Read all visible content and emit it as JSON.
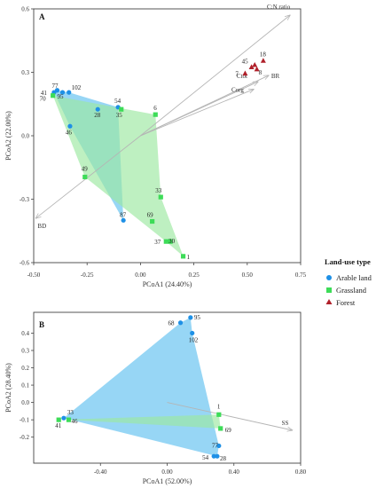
{
  "colors": {
    "arable": "#1e90e6",
    "grassland": "#3ddc58",
    "forest": "#b0202a",
    "arable_hull": "#5fc0ef",
    "grassland_hull": "#9be89f",
    "vector": "#b5b5b5",
    "frame": "#444444"
  },
  "legend": {
    "title": "Land-use type",
    "items": [
      "Arable land",
      "Grassland",
      "Forest"
    ]
  },
  "chart_data": [
    {
      "type": "scatter",
      "panel": "A",
      "xlabel": "PCoA1 (24.40%)",
      "ylabel": "PCoA2 (22.00%)",
      "xlim": [
        -0.5,
        0.75
      ],
      "ylim": [
        -0.6,
        0.6
      ],
      "xticks": [
        -0.5,
        -0.25,
        0,
        0.25,
        0.5,
        0.75
      ],
      "xtick_labels": [
        "-0.50",
        "-0.25",
        "0.00",
        "0.25",
        "0.50",
        "0.75"
      ],
      "yticks": [
        -0.6,
        -0.3,
        0,
        0.3,
        0.6
      ],
      "ytick_labels": [
        "-0.6",
        "-0.3",
        "0.0",
        "0.3",
        "0.6"
      ],
      "series": [
        {
          "name": "Arable land",
          "points": [
            {
              "label": "77",
              "x": -0.39,
              "y": 0.215
            },
            {
              "label": "41",
              "x": -0.405,
              "y": 0.205
            },
            {
              "label": "95",
              "x": -0.365,
              "y": 0.205
            },
            {
              "label": "102",
              "x": -0.335,
              "y": 0.205
            },
            {
              "label": "54",
              "x": -0.105,
              "y": 0.135
            },
            {
              "label": "28",
              "x": -0.2,
              "y": 0.125
            },
            {
              "label": "46",
              "x": -0.33,
              "y": 0.045
            },
            {
              "label": "87",
              "x": -0.08,
              "y": -0.4
            }
          ]
        },
        {
          "name": "Grassland",
          "points": [
            {
              "label": "70",
              "x": -0.41,
              "y": 0.19
            },
            {
              "label": "35",
              "x": -0.09,
              "y": 0.125
            },
            {
              "label": "6",
              "x": 0.07,
              "y": 0.1
            },
            {
              "label": "49",
              "x": -0.26,
              "y": -0.195
            },
            {
              "label": "33",
              "x": 0.095,
              "y": -0.29
            },
            {
              "label": "69",
              "x": 0.055,
              "y": -0.405
            },
            {
              "label": "37",
              "x": 0.12,
              "y": -0.5
            },
            {
              "label": "30",
              "x": 0.14,
              "y": -0.5
            },
            {
              "label": "1",
              "x": 0.2,
              "y": -0.57
            }
          ]
        },
        {
          "name": "Forest",
          "points": [
            {
              "label": "7",
              "x": 0.49,
              "y": 0.295
            },
            {
              "label": "45",
              "x": 0.52,
              "y": 0.325
            },
            {
              "label": "8",
              "x": 0.545,
              "y": 0.315
            },
            {
              "label": "",
              "x": 0.535,
              "y": 0.335
            },
            {
              "label": "18",
              "x": 0.575,
              "y": 0.355
            }
          ]
        }
      ],
      "hulls": [
        {
          "group": "Arable land",
          "labels": [
            "41",
            "77",
            "102",
            "54",
            "87",
            "46"
          ]
        },
        {
          "group": "Grassland",
          "labels": [
            "70",
            "6",
            "33",
            "1",
            "37",
            "49"
          ]
        }
      ],
      "vectors": [
        {
          "label": "C:N ratio",
          "x": 0.7,
          "y": 0.57
        },
        {
          "label": "BR",
          "x": 0.6,
          "y": 0.285
        },
        {
          "label": "Ctot",
          "x": 0.55,
          "y": 0.255
        },
        {
          "label": "Corg",
          "x": 0.53,
          "y": 0.22
        },
        {
          "label": "BD",
          "x": -0.49,
          "y": -0.39
        }
      ]
    },
    {
      "type": "scatter",
      "panel": "B",
      "xlabel": "PCoA1 (52.00%)",
      "ylabel": "PCoA2 (28.40%)",
      "xlim": [
        -0.8,
        0.8
      ],
      "ylim": [
        -0.35,
        0.52
      ],
      "xticks": [
        -0.4,
        0,
        0.4,
        0.8
      ],
      "xtick_labels": [
        "-0.40",
        "0.00",
        "0.40",
        "0.80"
      ],
      "yticks": [
        -0.2,
        -0.1,
        0,
        0.1,
        0.2,
        0.3,
        0.4
      ],
      "ytick_labels": [
        "-0.2",
        "-0.1",
        "0.0",
        "0.1",
        "0.2",
        "0.3",
        "0.4"
      ],
      "series": [
        {
          "name": "Arable land",
          "points": [
            {
              "label": "95",
              "x": 0.14,
              "y": 0.49
            },
            {
              "label": "68",
              "x": 0.08,
              "y": 0.46
            },
            {
              "label": "102",
              "x": 0.15,
              "y": 0.4
            },
            {
              "label": "33",
              "x": -0.62,
              "y": -0.09
            },
            {
              "label": "77",
              "x": 0.31,
              "y": -0.25
            },
            {
              "label": "54",
              "x": 0.28,
              "y": -0.31
            },
            {
              "label": "28",
              "x": 0.3,
              "y": -0.31
            }
          ]
        },
        {
          "name": "Grassland",
          "points": [
            {
              "label": "41",
              "x": -0.65,
              "y": -0.1
            },
            {
              "label": "46",
              "x": -0.59,
              "y": -0.1
            },
            {
              "label": "1",
              "x": 0.31,
              "y": -0.07
            },
            {
              "label": "69",
              "x": 0.32,
              "y": -0.15
            }
          ]
        }
      ],
      "hulls": [
        {
          "group": "Arable land",
          "labels": [
            "95",
            "102",
            "77",
            "28",
            "33",
            "68"
          ]
        },
        {
          "group": "Grassland",
          "labels": [
            "41",
            "1",
            "69",
            "46"
          ]
        }
      ],
      "vectors": [
        {
          "label": "SS",
          "x": 0.75,
          "y": -0.16
        }
      ]
    }
  ]
}
